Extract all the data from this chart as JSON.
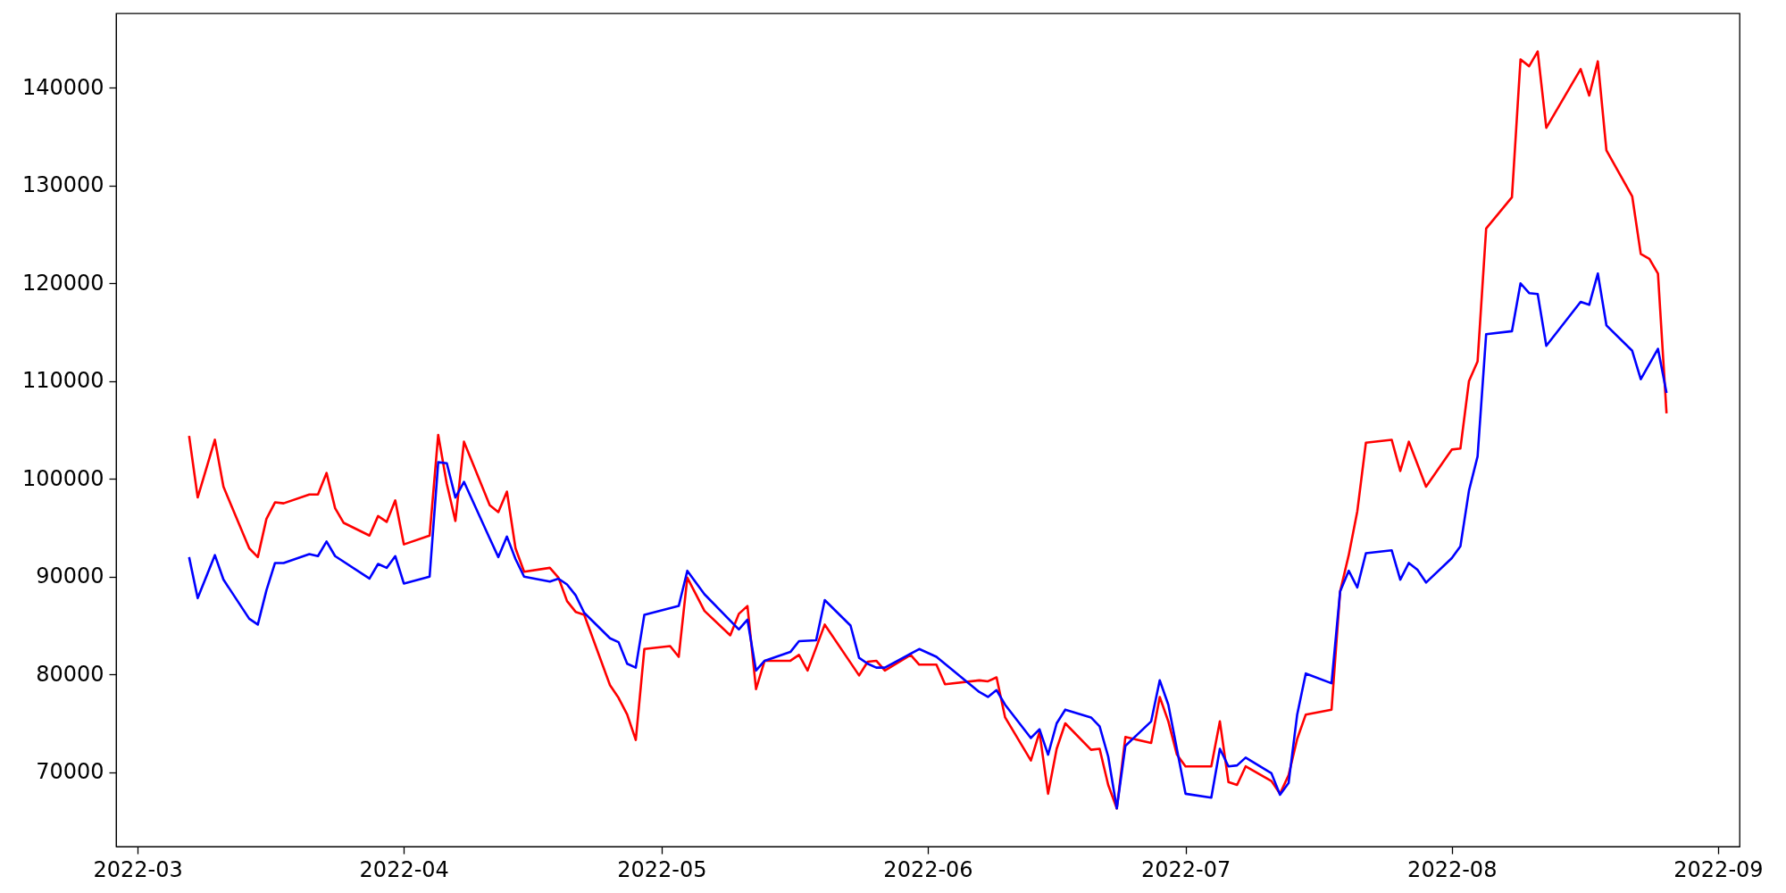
{
  "chart_data": {
    "type": "line",
    "xlim": [
      "2022-02-26T12:00",
      "2022-09-03T12:00"
    ],
    "xticks": [
      {
        "value": "2022-03-01",
        "label": "2022-03"
      },
      {
        "value": "2022-04-01",
        "label": "2022-04"
      },
      {
        "value": "2022-05-01",
        "label": "2022-05"
      },
      {
        "value": "2022-06-01",
        "label": "2022-06"
      },
      {
        "value": "2022-07-01",
        "label": "2022-07"
      },
      {
        "value": "2022-08-01",
        "label": "2022-08"
      },
      {
        "value": "2022-09-01",
        "label": "2022-09"
      }
    ],
    "ylim": [
      62400,
      147600
    ],
    "yticks": [
      70000,
      80000,
      90000,
      100000,
      110000,
      120000,
      130000,
      140000
    ],
    "grid": false,
    "series": [
      {
        "color": "#ff0000",
        "x": [
          "2022-03-07",
          "2022-03-08",
          "2022-03-10",
          "2022-03-11",
          "2022-03-14",
          "2022-03-15",
          "2022-03-16",
          "2022-03-17",
          "2022-03-18",
          "2022-03-21",
          "2022-03-22",
          "2022-03-23",
          "2022-03-24",
          "2022-03-25",
          "2022-03-28",
          "2022-03-29",
          "2022-03-30",
          "2022-03-31",
          "2022-04-01",
          "2022-04-04",
          "2022-04-05",
          "2022-04-06",
          "2022-04-07",
          "2022-04-08",
          "2022-04-11",
          "2022-04-12",
          "2022-04-13",
          "2022-04-14",
          "2022-04-15",
          "2022-04-18",
          "2022-04-19",
          "2022-04-20",
          "2022-04-21",
          "2022-04-22",
          "2022-04-25",
          "2022-04-26",
          "2022-04-27",
          "2022-04-28",
          "2022-04-29",
          "2022-05-02",
          "2022-05-03",
          "2022-05-04",
          "2022-05-06",
          "2022-05-09",
          "2022-05-10",
          "2022-05-11",
          "2022-05-12",
          "2022-05-13",
          "2022-05-16",
          "2022-05-17",
          "2022-05-18",
          "2022-05-20",
          "2022-05-23",
          "2022-05-24",
          "2022-05-25",
          "2022-05-26",
          "2022-05-27",
          "2022-05-30",
          "2022-05-31",
          "2022-06-02",
          "2022-06-03",
          "2022-06-07",
          "2022-06-08",
          "2022-06-09",
          "2022-06-10",
          "2022-06-13",
          "2022-06-14",
          "2022-06-15",
          "2022-06-16",
          "2022-06-17",
          "2022-06-20",
          "2022-06-21",
          "2022-06-22",
          "2022-06-23",
          "2022-06-24",
          "2022-06-27",
          "2022-06-28",
          "2022-06-29",
          "2022-06-30",
          "2022-07-01",
          "2022-07-04",
          "2022-07-05",
          "2022-07-06",
          "2022-07-07",
          "2022-07-08",
          "2022-07-11",
          "2022-07-12",
          "2022-07-13",
          "2022-07-14",
          "2022-07-15",
          "2022-07-18",
          "2022-07-19",
          "2022-07-20",
          "2022-07-21",
          "2022-07-22",
          "2022-07-25",
          "2022-07-26",
          "2022-07-27",
          "2022-07-29",
          "2022-08-01",
          "2022-08-02",
          "2022-08-03",
          "2022-08-04",
          "2022-08-05",
          "2022-08-08",
          "2022-08-09",
          "2022-08-10",
          "2022-08-11",
          "2022-08-12",
          "2022-08-16",
          "2022-08-17",
          "2022-08-18",
          "2022-08-19",
          "2022-08-22",
          "2022-08-23",
          "2022-08-24",
          "2022-08-25",
          "2022-08-26"
        ],
        "values": [
          104400,
          98100,
          104000,
          99200,
          92900,
          92000,
          95900,
          97600,
          97500,
          98400,
          98400,
          100600,
          97000,
          95500,
          94200,
          96200,
          95600,
          97800,
          93300,
          94200,
          104500,
          99500,
          95700,
          103800,
          97300,
          96600,
          98700,
          92900,
          90500,
          90900,
          89900,
          87500,
          86400,
          86100,
          78900,
          77600,
          75900,
          73300,
          82600,
          82900,
          81800,
          89900,
          86500,
          84000,
          86200,
          87000,
          78500,
          81400,
          81400,
          82000,
          80400,
          85100,
          81200,
          79900,
          81300,
          81400,
          80400,
          82000,
          81000,
          81000,
          79000,
          79400,
          79300,
          79700,
          75600,
          71200,
          74100,
          67800,
          72400,
          75000,
          72300,
          72400,
          68700,
          66300,
          73600,
          73000,
          77700,
          75200,
          71800,
          70600,
          70600,
          75200,
          69000,
          68700,
          70600,
          69100,
          67800,
          69700,
          73400,
          75900,
          76400,
          88500,
          92200,
          96700,
          103700,
          104000,
          100800,
          103800,
          99200,
          103000,
          103100,
          110000,
          112000,
          125600,
          128800,
          142900,
          142200,
          143700,
          135900,
          141900,
          139200,
          142700,
          133600,
          128900,
          123000,
          122500,
          121000,
          106700
        ]
      },
      {
        "color": "#0000ff",
        "x": [
          "2022-03-07",
          "2022-03-08",
          "2022-03-10",
          "2022-03-11",
          "2022-03-14",
          "2022-03-15",
          "2022-03-16",
          "2022-03-17",
          "2022-03-18",
          "2022-03-21",
          "2022-03-22",
          "2022-03-23",
          "2022-03-24",
          "2022-03-28",
          "2022-03-29",
          "2022-03-30",
          "2022-03-31",
          "2022-04-01",
          "2022-04-04",
          "2022-04-05",
          "2022-04-06",
          "2022-04-07",
          "2022-04-08",
          "2022-04-11",
          "2022-04-12",
          "2022-04-13",
          "2022-04-14",
          "2022-04-15",
          "2022-04-18",
          "2022-04-19",
          "2022-04-20",
          "2022-04-21",
          "2022-04-22",
          "2022-04-25",
          "2022-04-26",
          "2022-04-27",
          "2022-04-28",
          "2022-04-29",
          "2022-05-03",
          "2022-05-04",
          "2022-05-06",
          "2022-05-10",
          "2022-05-11",
          "2022-05-12",
          "2022-05-13",
          "2022-05-16",
          "2022-05-17",
          "2022-05-19",
          "2022-05-20",
          "2022-05-23",
          "2022-05-24",
          "2022-05-25",
          "2022-05-26",
          "2022-05-27",
          "2022-05-31",
          "2022-06-02",
          "2022-06-07",
          "2022-06-08",
          "2022-06-09",
          "2022-06-10",
          "2022-06-13",
          "2022-06-14",
          "2022-06-15",
          "2022-06-16",
          "2022-06-17",
          "2022-06-20",
          "2022-06-21",
          "2022-06-22",
          "2022-06-23",
          "2022-06-24",
          "2022-06-27",
          "2022-06-28",
          "2022-06-29",
          "2022-07-01",
          "2022-07-04",
          "2022-07-05",
          "2022-07-06",
          "2022-07-07",
          "2022-07-08",
          "2022-07-11",
          "2022-07-12",
          "2022-07-13",
          "2022-07-14",
          "2022-07-15",
          "2022-07-18",
          "2022-07-19",
          "2022-07-20",
          "2022-07-21",
          "2022-07-22",
          "2022-07-25",
          "2022-07-26",
          "2022-07-27",
          "2022-07-28",
          "2022-07-29",
          "2022-08-01",
          "2022-08-02",
          "2022-08-03",
          "2022-08-04",
          "2022-08-05",
          "2022-08-08",
          "2022-08-09",
          "2022-08-10",
          "2022-08-11",
          "2022-08-12",
          "2022-08-16",
          "2022-08-17",
          "2022-08-18",
          "2022-08-19",
          "2022-08-22",
          "2022-08-23",
          "2022-08-25",
          "2022-08-26"
        ],
        "values": [
          92000,
          87800,
          92200,
          89700,
          85700,
          85100,
          88600,
          91400,
          91400,
          92300,
          92100,
          93600,
          92100,
          89800,
          91300,
          90900,
          92100,
          89300,
          90000,
          101700,
          101600,
          98100,
          99700,
          93900,
          92000,
          94100,
          91800,
          90000,
          89500,
          89800,
          89200,
          88100,
          86300,
          83700,
          83300,
          81100,
          80700,
          86100,
          87000,
          90600,
          88200,
          84600,
          85600,
          80400,
          81400,
          82300,
          83400,
          83500,
          87600,
          85000,
          81700,
          81100,
          80700,
          80700,
          82600,
          81800,
          78200,
          77700,
          78400,
          76900,
          73500,
          74400,
          71800,
          75000,
          76400,
          75600,
          74700,
          71600,
          66300,
          72700,
          75200,
          79400,
          76900,
          67800,
          67400,
          72400,
          70600,
          70700,
          71500,
          69900,
          67700,
          68900,
          75900,
          80100,
          79100,
          88500,
          90600,
          88900,
          92400,
          92700,
          89700,
          91400,
          90700,
          89400,
          91900,
          93100,
          98800,
          102300,
          114800,
          115100,
          120000,
          119000,
          118900,
          113600,
          118100,
          117800,
          121000,
          115700,
          113100,
          110200,
          113300,
          108800
        ]
      }
    ]
  }
}
